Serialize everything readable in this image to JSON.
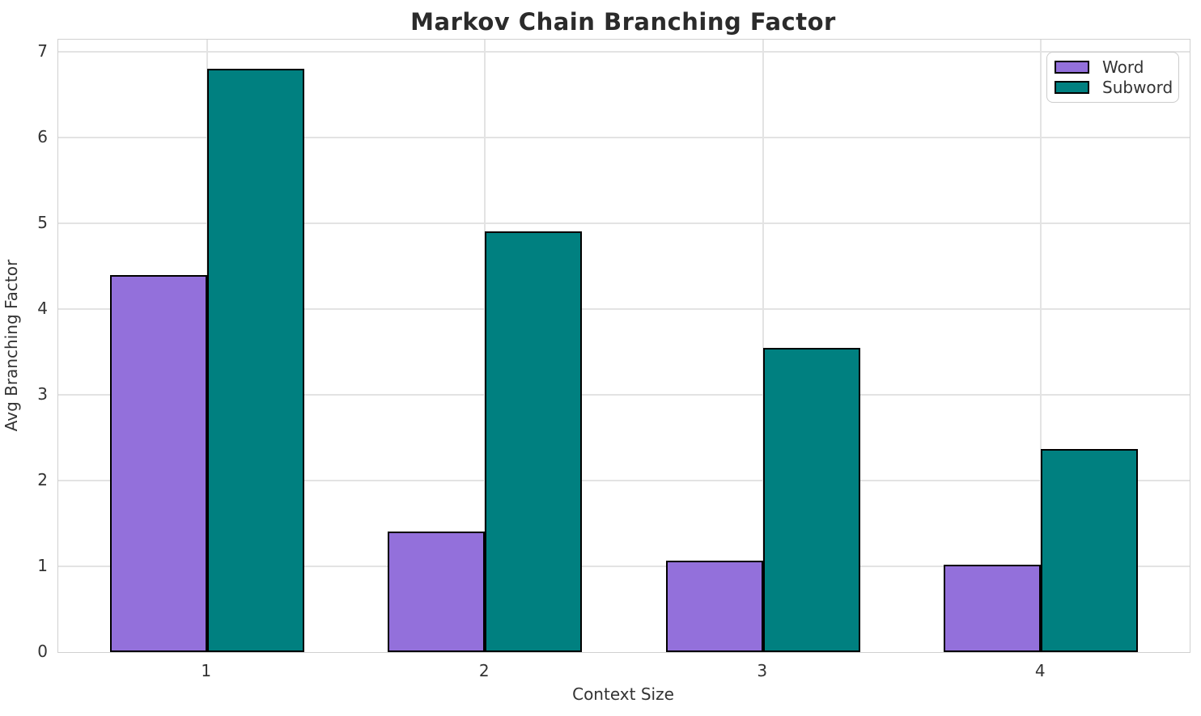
{
  "chart_data": {
    "type": "bar",
    "title": "Markov Chain Branching Factor",
    "xlabel": "Context Size",
    "ylabel": "Avg Branching Factor",
    "categories": [
      "1",
      "2",
      "3",
      "4"
    ],
    "series": [
      {
        "name": "Word",
        "color": "#9370DB",
        "values": [
          4.4,
          1.41,
          1.07,
          1.02
        ]
      },
      {
        "name": "Subword",
        "color": "#008080",
        "values": [
          6.8,
          4.9,
          3.55,
          2.37
        ]
      }
    ],
    "ylim": [
      0,
      7.14
    ],
    "yticks": [
      0,
      1,
      2,
      3,
      4,
      5,
      6,
      7
    ],
    "xlim": [
      0.465,
      4.535
    ],
    "bar_width": 0.35,
    "bar_edge_color": "#000000",
    "grid": true,
    "legend_position": "upper right"
  }
}
